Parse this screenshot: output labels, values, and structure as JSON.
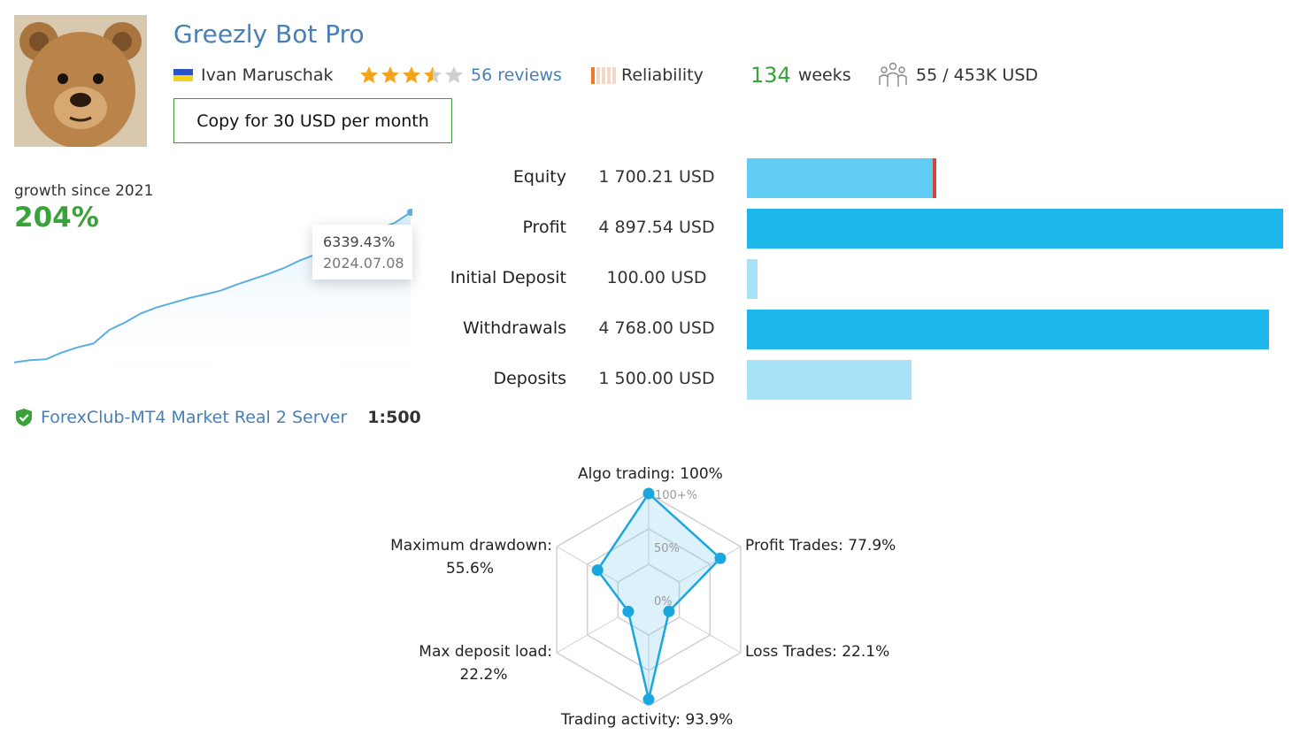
{
  "header": {
    "title": "Greezly Bot Pro",
    "author": "Ivan Maruschak",
    "rating": 3.5,
    "reviews": "56 reviews",
    "reliability_label": "Reliability",
    "reliability_level": 0.2,
    "weeks_num": "134",
    "weeks_label": "weeks",
    "subscribers": "55 / 453K USD",
    "copy_button": "Copy for 30 USD per month",
    "colors": {
      "title": "#4a7fb5",
      "green": "#3aa23a",
      "flag_top": "#2b55c7",
      "flag_bottom": "#f6d21b",
      "reliability": "#f07a2a"
    },
    "icons": [
      "flag-ukraine-icon",
      "star-icon",
      "reliability-bars-icon",
      "subscribers-icon"
    ]
  },
  "growth": {
    "label": "growth since 2021",
    "value": "204%",
    "tooltip_value": "6339.43%",
    "tooltip_date": "2024.07.08",
    "server": "ForexClub-MT4 Market Real 2 Server",
    "leverage": "1:500",
    "line_color": "#5aaee3"
  },
  "stats": [
    {
      "label": "Equity",
      "value": "1 700.21 USD",
      "amount": 1700.21,
      "color": "#62cdf4"
    },
    {
      "label": "Profit",
      "value": "4 897.54 USD",
      "amount": 4897.54,
      "color": "#1fb6ec"
    },
    {
      "label": "Initial Deposit",
      "value": "100.00 USD",
      "amount": 100.0,
      "color": "#a8e2f9"
    },
    {
      "label": "Withdrawals",
      "value": "4 768.00 USD",
      "amount": 4768.0,
      "color": "#1fb6ec"
    },
    {
      "label": "Deposits",
      "value": "1 500.00 USD",
      "amount": 1500.0,
      "color": "#a8e2f9"
    }
  ],
  "chart_data": [
    {
      "type": "line",
      "title": "",
      "xlabel": "",
      "ylabel": "",
      "x": [
        0,
        1,
        2,
        3,
        4,
        5,
        6,
        7,
        8,
        9,
        10,
        11,
        12,
        13,
        14,
        15,
        16,
        17,
        18,
        19,
        20,
        21,
        22,
        23,
        24,
        25
      ],
      "series": [
        {
          "values": [
            5,
            8,
            9,
            18,
            25,
            30,
            48,
            58,
            70,
            78,
            84,
            90,
            95,
            100,
            108,
            115,
            122,
            130,
            140,
            148,
            155,
            164,
            172,
            182,
            190,
            204
          ]
        }
      ],
      "tooltip": {
        "value": "6339.43%",
        "date": "2024.07.08"
      },
      "grid": false
    },
    {
      "type": "bar",
      "categories": [
        "Equity",
        "Profit",
        "Initial Deposit",
        "Withdrawals",
        "Deposits"
      ],
      "values": [
        1700.21,
        4897.54,
        100.0,
        4768.0,
        1500.0
      ],
      "orientation": "horizontal",
      "xlim": [
        0,
        4897.54
      ]
    },
    {
      "type": "radar",
      "center_labels": {
        "inner": "0%",
        "mid": "50%",
        "outer": "100+%"
      },
      "axes": [
        {
          "label": "Algo trading: 100%",
          "value": 100
        },
        {
          "label": "Profit Trades: 77.9%",
          "value": 77.9
        },
        {
          "label": "Loss Trades: 22.1%",
          "value": 22.1
        },
        {
          "label": "Trading activity: 93.9%",
          "value": 93.9
        },
        {
          "label": "Max deposit load:",
          "label2": "22.2%",
          "value": 22.2
        },
        {
          "label": "Maximum drawdown:",
          "label2": "55.6%",
          "value": 55.6
        }
      ],
      "color": "#1aa7e0"
    }
  ]
}
